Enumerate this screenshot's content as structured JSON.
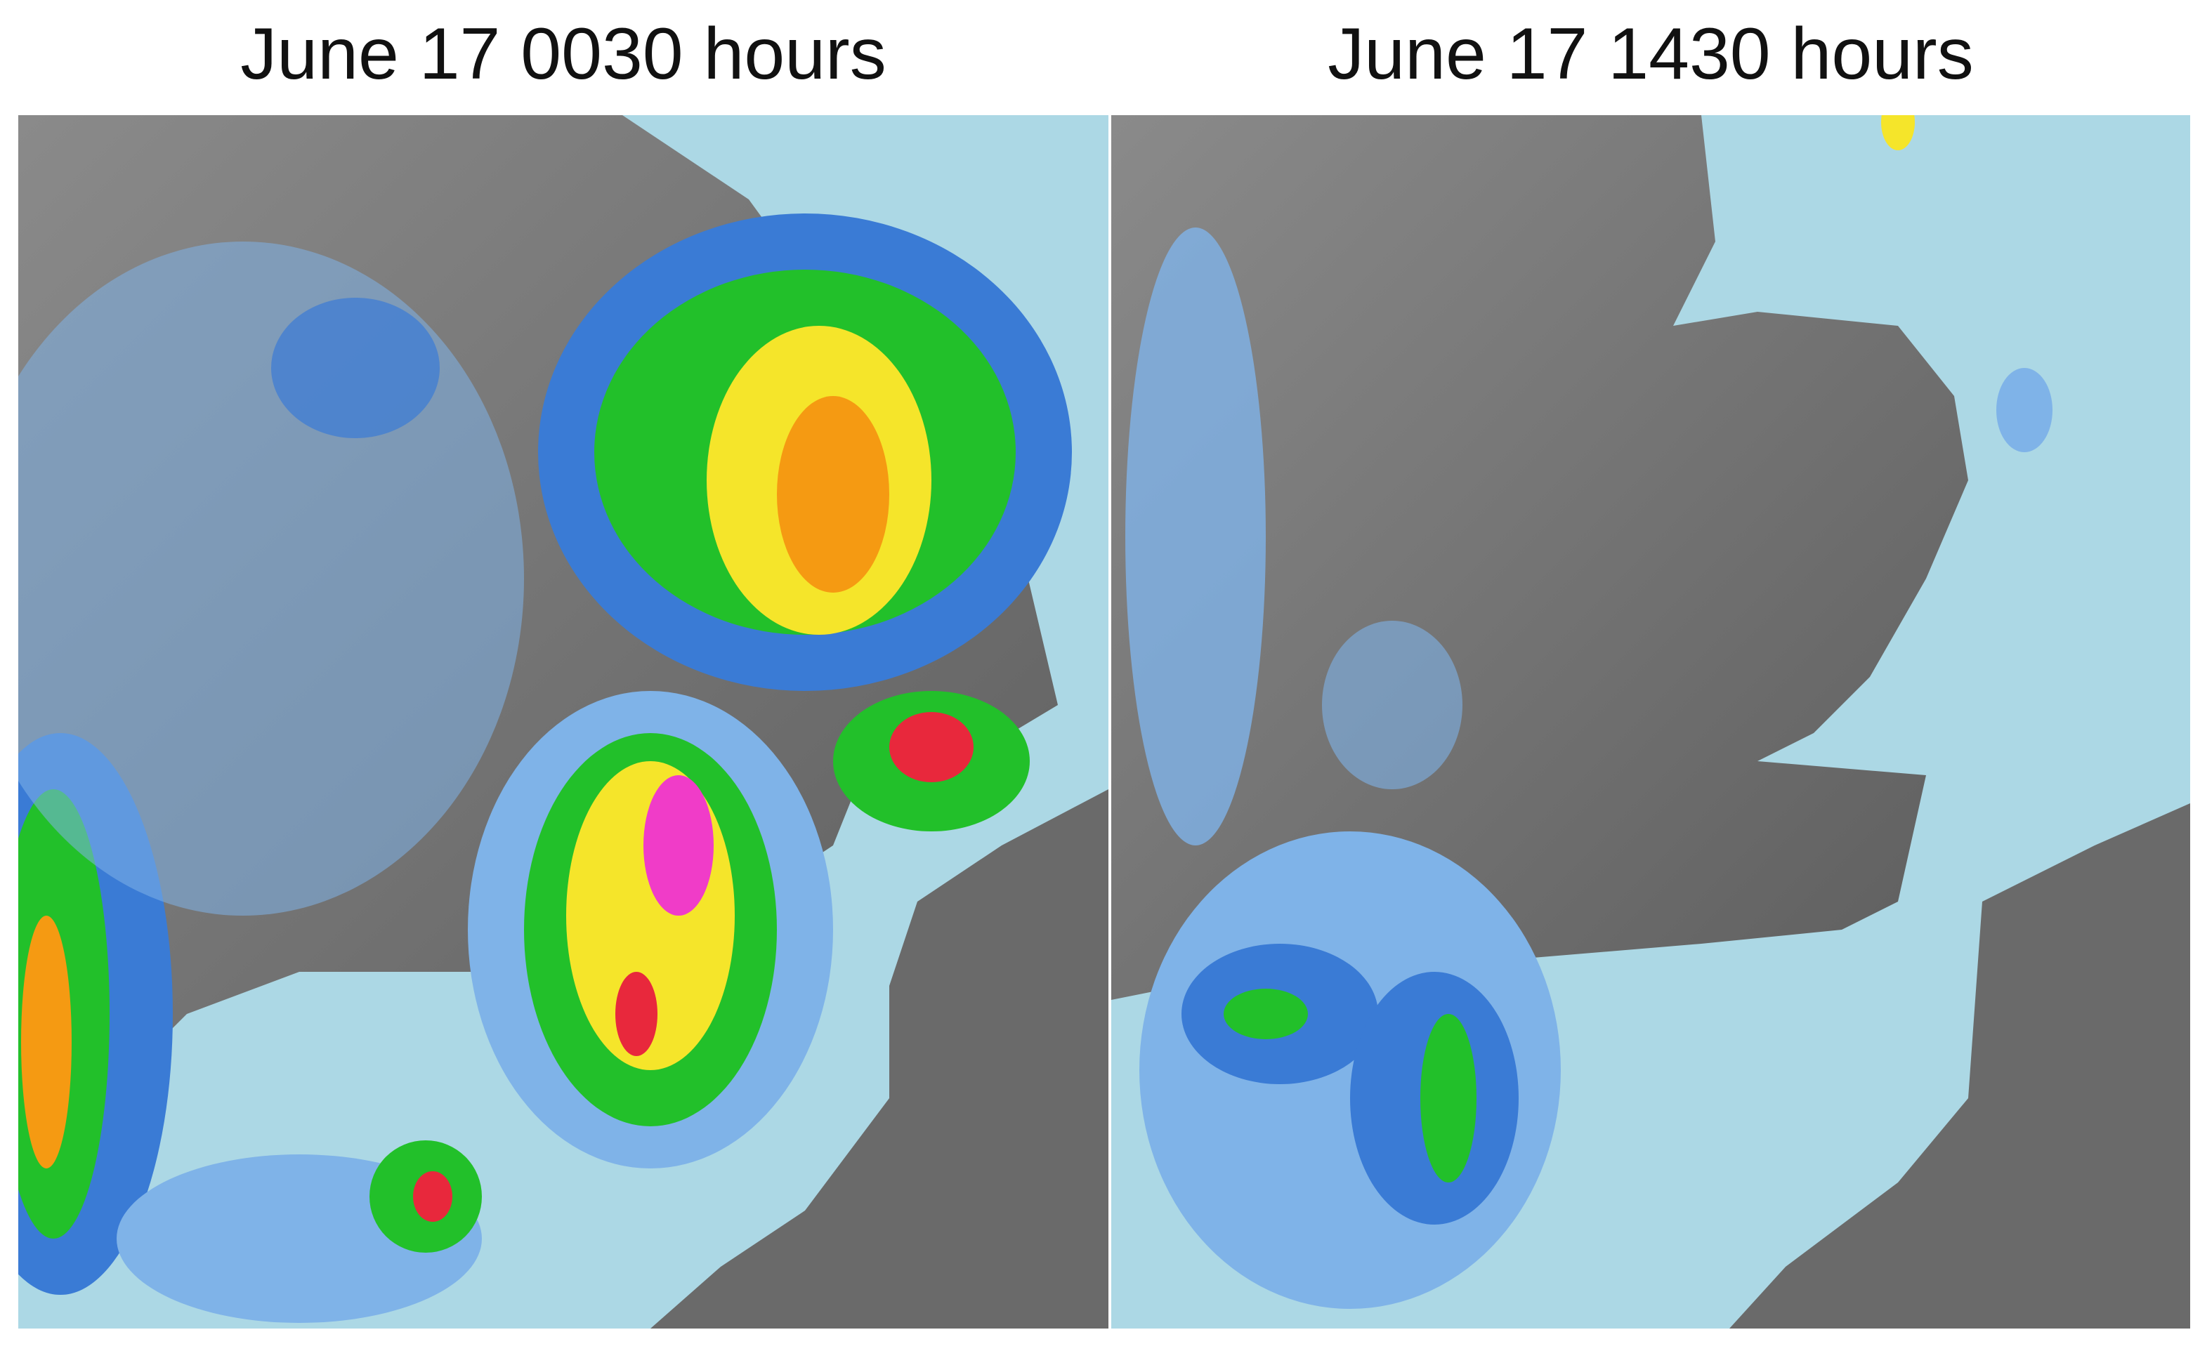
{
  "panels": [
    {
      "title": "June 17 0030 hours"
    },
    {
      "title": "June 17 1430 hours"
    }
  ]
}
